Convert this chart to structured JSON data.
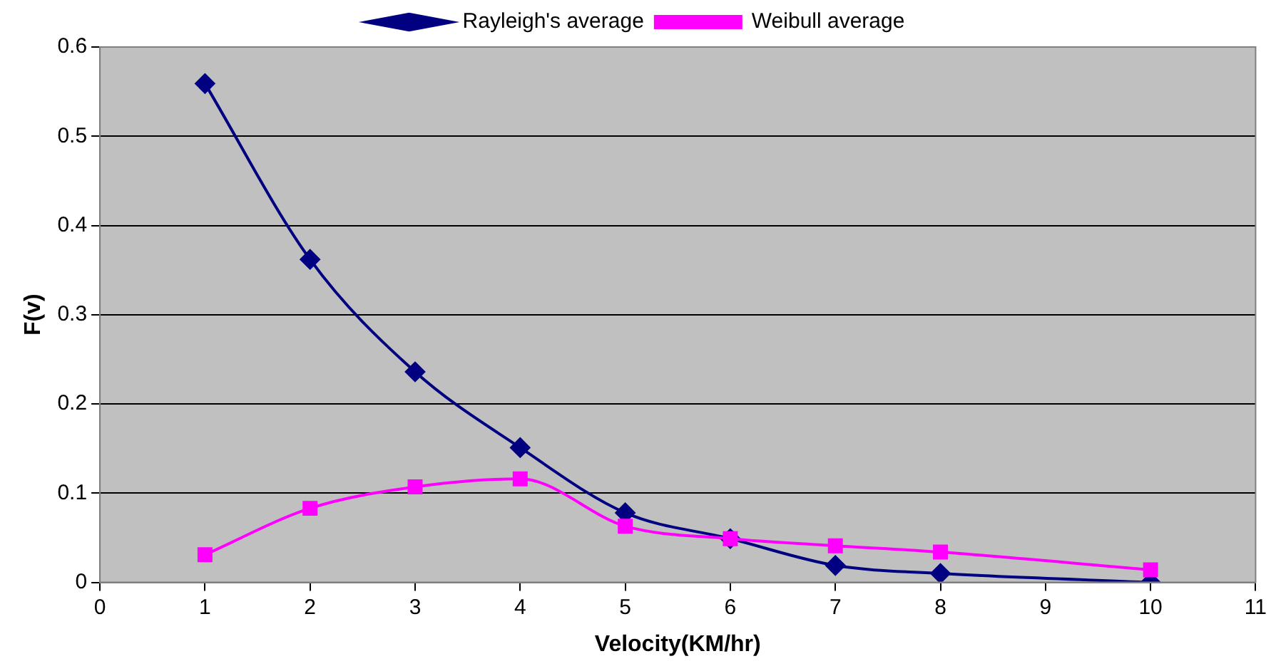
{
  "chart_data": {
    "type": "line",
    "xlabel": "Velocity(KM/hr)",
    "ylabel": "F(v)",
    "x": [
      1,
      2,
      3,
      4,
      5,
      6,
      7,
      8,
      10
    ],
    "series": [
      {
        "name": "Rayleigh's average",
        "color": "#000080",
        "marker": "diamond",
        "values": [
          0.559,
          0.362,
          0.236,
          0.151,
          0.078,
          0.049,
          0.019,
          0.01,
          0.0
        ]
      },
      {
        "name": "Weibull average",
        "color": "#ff00ff",
        "marker": "square",
        "values": [
          0.031,
          0.083,
          0.107,
          0.116,
          0.063,
          0.049,
          0.041,
          0.034,
          0.014
        ]
      }
    ],
    "xlim": [
      0,
      11
    ],
    "xticks": [
      0,
      1,
      2,
      3,
      4,
      5,
      6,
      7,
      8,
      9,
      10,
      11
    ],
    "ylim": [
      0,
      0.6
    ],
    "yticks": [
      0,
      0.1,
      0.2,
      0.3,
      0.4,
      0.5,
      0.6
    ],
    "grid": "y",
    "legend": "top",
    "line_style": "solid"
  }
}
